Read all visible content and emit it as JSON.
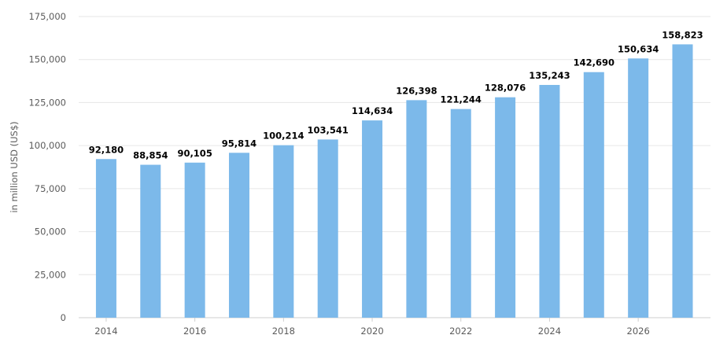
{
  "chart_data": {
    "type": "bar",
    "title": "",
    "xlabel": "",
    "ylabel": "in million USD (US$)",
    "ylim": [
      0,
      175000
    ],
    "y_ticks": [
      0,
      25000,
      50000,
      75000,
      100000,
      125000,
      150000,
      175000
    ],
    "y_tick_labels": [
      "0",
      "25,000",
      "50,000",
      "75,000",
      "100,000",
      "125,000",
      "150,000",
      "175,000"
    ],
    "categories": [
      "2014",
      "2015",
      "2016",
      "2017",
      "2018",
      "2019",
      "2020",
      "2021",
      "2022",
      "2023",
      "2024",
      "2025",
      "2026",
      "2027"
    ],
    "x_tick_labels_shown": [
      "2014",
      "2016",
      "2018",
      "2020",
      "2022",
      "2024",
      "2026"
    ],
    "values": [
      92180,
      88854,
      90105,
      95814,
      100214,
      103541,
      114634,
      126398,
      121244,
      128076,
      135243,
      142690,
      150634,
      158823
    ],
    "data_labels": [
      "92,180",
      "88,854",
      "90,105",
      "95,814",
      "100,214",
      "103,541",
      "114,634",
      "126,398",
      "121,244",
      "128,076",
      "135,243",
      "142,690",
      "150,634",
      "158,823"
    ],
    "bar_color": "#7cb9ea",
    "grid": true,
    "legend": "none"
  }
}
